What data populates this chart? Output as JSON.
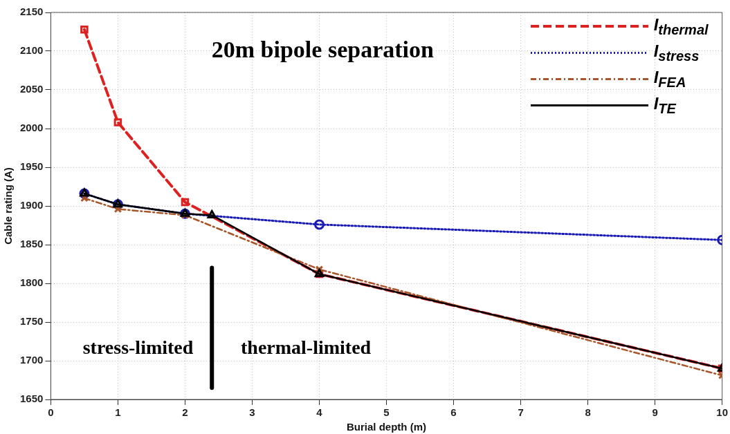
{
  "chart_data": {
    "type": "line",
    "title": "20m bipole separation",
    "xlabel": "Burial depth (m)",
    "ylabel": "Cable rating (A)",
    "x": [
      0.5,
      1,
      2,
      4,
      10
    ],
    "series": [
      {
        "name": "I$_{thermal}$",
        "color": "#dd2020",
        "values": [
          2128,
          2008,
          1905,
          1812,
          1690
        ],
        "line_style": "dashed",
        "marker": "square"
      },
      {
        "name": "I$_{stress}$",
        "color": "#1a1ab4",
        "values": [
          1916,
          1902,
          1890,
          1876,
          1856
        ],
        "line_style": "dotted",
        "marker": "circle"
      },
      {
        "name": "I$_{FEA}$",
        "color": "#a8562a",
        "values": [
          1910,
          1896,
          1888,
          1818,
          1681
        ],
        "line_style": "dashdot",
        "marker": "cross"
      },
      {
        "name": "I$_{TE}$",
        "color": "#000000",
        "x": [
          0.5,
          1,
          2,
          2.4,
          4,
          10
        ],
        "values": [
          1916,
          1902,
          1890,
          1888,
          1812,
          1690
        ],
        "line_style": "solid",
        "marker": "triangle"
      },
      {
        "color": "#000000",
        "x": [
          2.4,
          2.4
        ],
        "values": [
          1665,
          1820
        ],
        "line_style": "solid",
        "marker": "none"
      }
    ],
    "xlim": [
      0,
      10
    ],
    "xticks": [
      0,
      1,
      2,
      3,
      4,
      5,
      6,
      7,
      8,
      9,
      10
    ],
    "ylim": [
      1650,
      2150
    ],
    "yticks": [
      1650,
      1700,
      1750,
      1800,
      1850,
      1900,
      1950,
      2000,
      2050,
      2100,
      2150
    ],
    "grid": true,
    "legend": "top right",
    "annotations": [
      "stress-limited",
      "thermal-limited"
    ]
  }
}
